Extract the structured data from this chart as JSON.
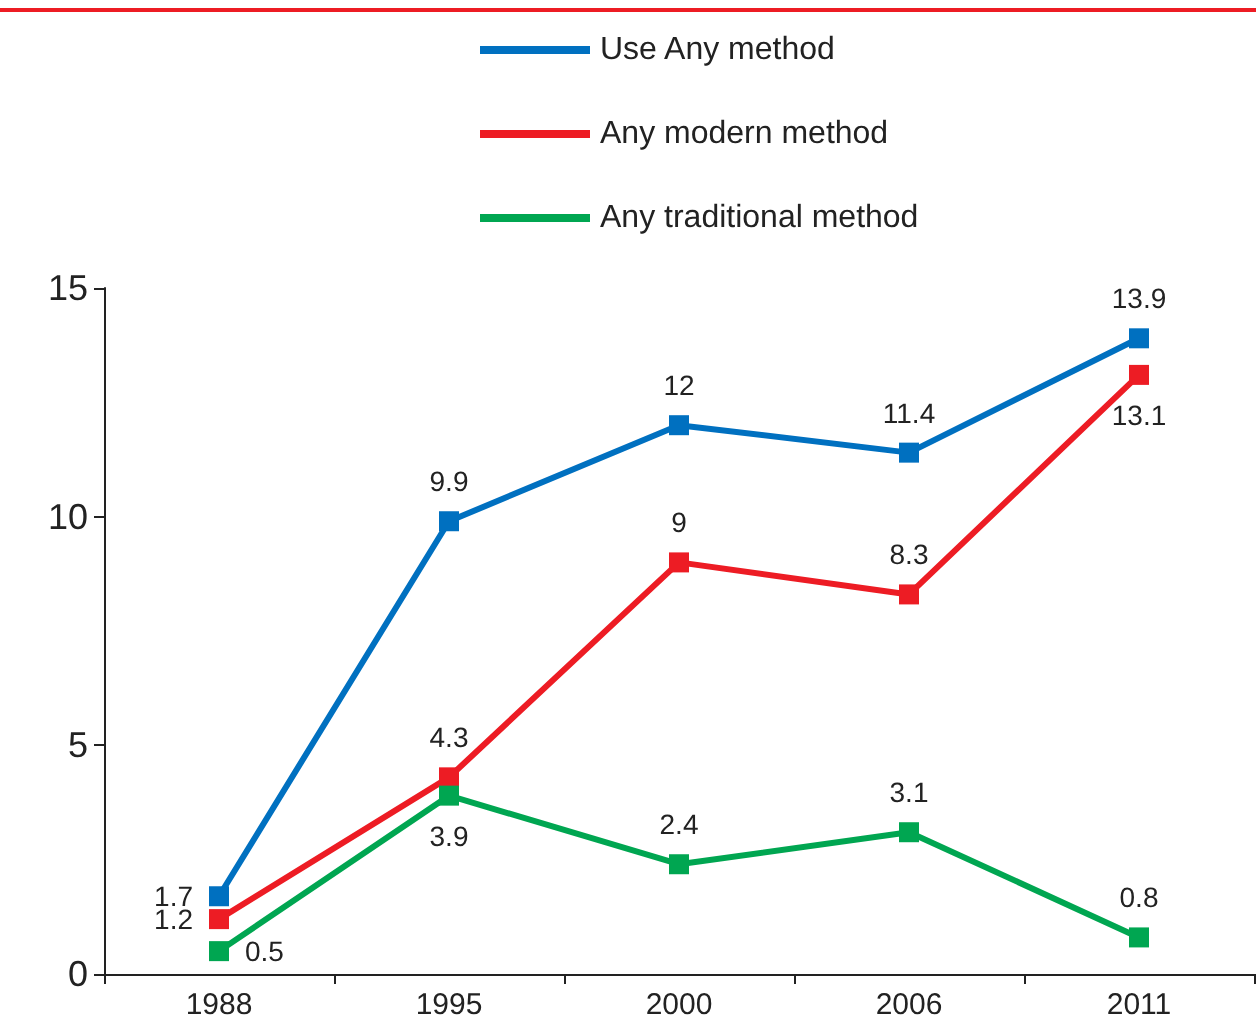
{
  "chart_data": {
    "type": "line",
    "categories": [
      "1988",
      "1995",
      "2000",
      "2006",
      "2011"
    ],
    "series": [
      {
        "name": "Use Any method",
        "color": "#0070c0",
        "values": [
          1.7,
          9.9,
          12,
          11.4,
          13.9
        ]
      },
      {
        "name": "Any modern method",
        "color": "#ed1c24",
        "values": [
          1.2,
          4.3,
          9,
          8.3,
          13.1
        ]
      },
      {
        "name": "Any traditional method",
        "color": "#00a651",
        "values": [
          0.5,
          3.9,
          2.4,
          3.1,
          0.8
        ]
      }
    ],
    "ylim": [
      0,
      15
    ],
    "yticks": [
      0,
      5,
      10,
      15
    ],
    "grid": false,
    "legend": "top",
    "marker": "square",
    "line_style": "solid",
    "data_labels": true
  }
}
